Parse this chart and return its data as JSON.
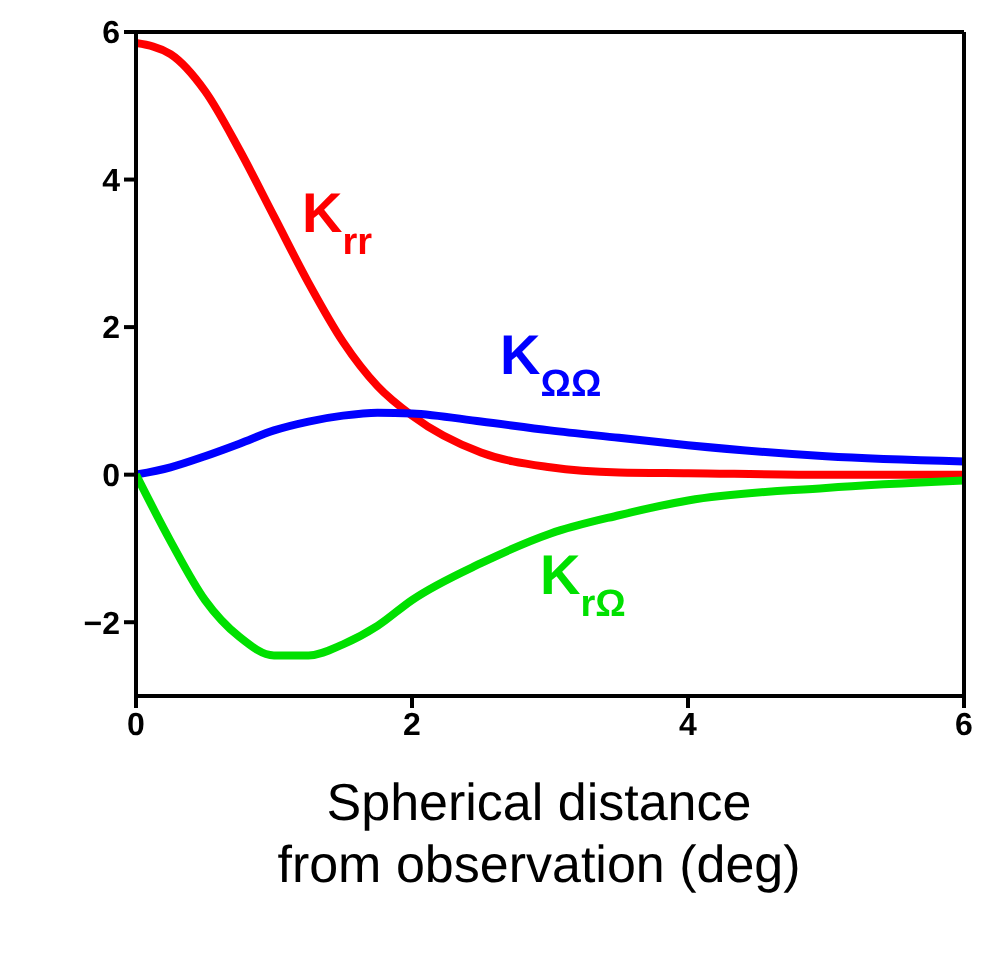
{
  "chart_data": {
    "type": "line",
    "xlabel": "Spherical distance\nfrom observation (deg)",
    "x": [
      0,
      0.25,
      0.5,
      0.75,
      1,
      1.25,
      1.5,
      1.75,
      2,
      2.5,
      3,
      3.5,
      4,
      5,
      6
    ],
    "series": [
      {
        "name": "K$_{rr}$",
        "color": "#ff0000",
        "values": [
          5.85,
          5.7,
          5.2,
          4.4,
          3.5,
          2.6,
          1.8,
          1.2,
          0.8,
          0.3,
          0.1,
          0.03,
          0.02,
          0,
          0
        ]
      },
      {
        "name": "K$_{ΩΩ}$",
        "color": "#0000ff",
        "values": [
          0,
          0.1,
          0.25,
          0.42,
          0.6,
          0.72,
          0.8,
          0.84,
          0.83,
          0.72,
          0.6,
          0.5,
          0.4,
          0.25,
          0.18
        ]
      },
      {
        "name": "K$_{rΩ}$",
        "color": "#00e000",
        "values": [
          0,
          -0.9,
          -1.7,
          -2.2,
          -2.45,
          -2.45,
          -2.3,
          -2.05,
          -1.7,
          -1.2,
          -0.8,
          -0.55,
          -0.35,
          -0.18,
          -0.08
        ]
      }
    ],
    "xlim": [
      0,
      6
    ],
    "xticks": [
      0,
      2,
      4,
      6
    ],
    "ylim": [
      -3,
      6
    ],
    "yticks": [
      {
        "value": -2,
        "label": "−2"
      },
      0,
      2,
      4,
      6
    ],
    "grid": false,
    "marker": "none",
    "line_style": "solid"
  }
}
